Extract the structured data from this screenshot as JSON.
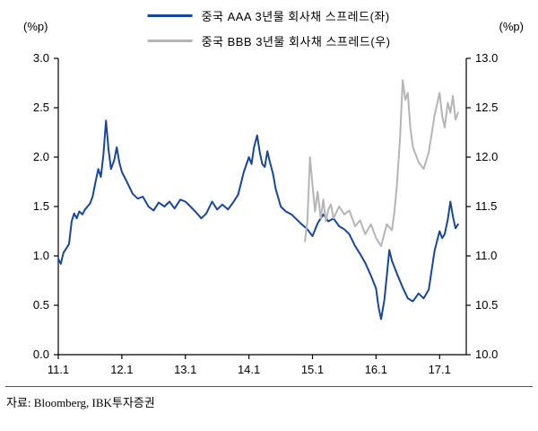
{
  "header": {
    "left_axis_unit": "(%p)",
    "right_axis_unit": "(%p)"
  },
  "legend": {
    "items": [
      {
        "label": "중국 AAA 3년물 회사채 스프레드(좌)",
        "color": "#17479d"
      },
      {
        "label": "중국 BBB 3년물 회사채 스프레드(우)",
        "color": "#b5b5b5"
      }
    ]
  },
  "footer": {
    "source": "자료: Bloomberg, IBK투자증권"
  },
  "chart_data": {
    "type": "line",
    "title": "",
    "xlabel": "",
    "ylabel_left": "(%p)",
    "ylabel_right": "(%p)",
    "grid": false,
    "legend_position": "top-center",
    "x_range": [
      2011.0,
      2017.42
    ],
    "x_tick_values": [
      2011,
      2012,
      2013,
      2014,
      2015,
      2016,
      2017
    ],
    "x_tick_labels": [
      "11.1",
      "12.1",
      "13.1",
      "14.1",
      "15.1",
      "16.1",
      "17.1"
    ],
    "left_ylim": [
      0.0,
      3.0
    ],
    "left_yticks": [
      0.0,
      0.5,
      1.0,
      1.5,
      2.0,
      2.5,
      3.0
    ],
    "right_ylim": [
      10.0,
      13.0
    ],
    "right_yticks": [
      10.0,
      10.5,
      11.0,
      11.5,
      12.0,
      12.5,
      13.0
    ],
    "series": [
      {
        "name": "중국 AAA 3년물 회사채 스프레드(좌)",
        "axis": "left",
        "color": "#17479d",
        "width": 2,
        "x": [
          2011.0,
          2011.04,
          2011.08,
          2011.13,
          2011.17,
          2011.21,
          2011.25,
          2011.29,
          2011.33,
          2011.38,
          2011.42,
          2011.46,
          2011.5,
          2011.54,
          2011.58,
          2011.63,
          2011.67,
          2011.71,
          2011.75,
          2011.79,
          2011.83,
          2011.88,
          2011.92,
          2011.96,
          2012.0,
          2012.08,
          2012.17,
          2012.25,
          2012.33,
          2012.42,
          2012.5,
          2012.58,
          2012.67,
          2012.75,
          2012.83,
          2012.92,
          2013.0,
          2013.08,
          2013.17,
          2013.25,
          2013.33,
          2013.42,
          2013.5,
          2013.58,
          2013.67,
          2013.75,
          2013.83,
          2013.92,
          2014.0,
          2014.04,
          2014.08,
          2014.13,
          2014.17,
          2014.21,
          2014.25,
          2014.29,
          2014.33,
          2014.38,
          2014.42,
          2014.5,
          2014.58,
          2014.67,
          2014.75,
          2014.83,
          2014.92,
          2015.0,
          2015.08,
          2015.17,
          2015.25,
          2015.33,
          2015.42,
          2015.5,
          2015.58,
          2015.67,
          2015.75,
          2015.83,
          2015.92,
          2016.0,
          2016.04,
          2016.08,
          2016.13,
          2016.17,
          2016.21,
          2016.25,
          2016.33,
          2016.42,
          2016.5,
          2016.58,
          2016.67,
          2016.75,
          2016.83,
          2016.92,
          2017.0,
          2017.04,
          2017.08,
          2017.13,
          2017.17,
          2017.21,
          2017.25,
          2017.29
        ],
        "y": [
          0.97,
          0.92,
          1.03,
          1.08,
          1.12,
          1.35,
          1.43,
          1.38,
          1.45,
          1.42,
          1.47,
          1.5,
          1.53,
          1.6,
          1.73,
          1.88,
          1.8,
          2.02,
          2.37,
          2.08,
          1.88,
          1.97,
          2.1,
          1.95,
          1.85,
          1.75,
          1.63,
          1.58,
          1.6,
          1.5,
          1.46,
          1.54,
          1.5,
          1.55,
          1.48,
          1.57,
          1.55,
          1.5,
          1.44,
          1.38,
          1.43,
          1.55,
          1.47,
          1.52,
          1.47,
          1.54,
          1.62,
          1.85,
          2.0,
          1.93,
          2.1,
          2.22,
          2.05,
          1.93,
          1.9,
          2.06,
          1.95,
          1.83,
          1.68,
          1.5,
          1.45,
          1.42,
          1.37,
          1.32,
          1.27,
          1.2,
          1.33,
          1.42,
          1.35,
          1.38,
          1.3,
          1.27,
          1.22,
          1.1,
          1.02,
          0.93,
          0.8,
          0.67,
          0.48,
          0.36,
          0.55,
          0.8,
          1.06,
          0.95,
          0.82,
          0.68,
          0.57,
          0.54,
          0.62,
          0.57,
          0.66,
          1.05,
          1.25,
          1.18,
          1.22,
          1.37,
          1.55,
          1.4,
          1.28,
          1.32
        ]
      },
      {
        "name": "중국 BBB 3년물 회사채 스프레드(우)",
        "axis": "right",
        "color": "#b5b5b5",
        "width": 2,
        "x": [
          2014.88,
          2014.92,
          2014.96,
          2015.0,
          2015.04,
          2015.08,
          2015.13,
          2015.17,
          2015.21,
          2015.25,
          2015.29,
          2015.33,
          2015.42,
          2015.5,
          2015.58,
          2015.67,
          2015.75,
          2015.83,
          2015.92,
          2016.0,
          2016.08,
          2016.17,
          2016.25,
          2016.29,
          2016.33,
          2016.38,
          2016.42,
          2016.46,
          2016.5,
          2016.54,
          2016.58,
          2016.67,
          2016.75,
          2016.83,
          2016.92,
          2017.0,
          2017.04,
          2017.08,
          2017.13,
          2017.17,
          2017.21,
          2017.25,
          2017.29
        ],
        "y": [
          11.15,
          11.35,
          12.0,
          11.72,
          11.45,
          11.65,
          11.38,
          11.57,
          11.35,
          11.47,
          11.52,
          11.38,
          11.5,
          11.42,
          11.46,
          11.3,
          11.36,
          11.22,
          11.32,
          11.18,
          11.1,
          11.32,
          11.26,
          11.45,
          11.72,
          12.22,
          12.78,
          12.58,
          12.65,
          12.3,
          12.1,
          11.95,
          11.88,
          12.05,
          12.42,
          12.65,
          12.42,
          12.3,
          12.55,
          12.45,
          12.62,
          12.38,
          12.45
        ]
      }
    ]
  }
}
